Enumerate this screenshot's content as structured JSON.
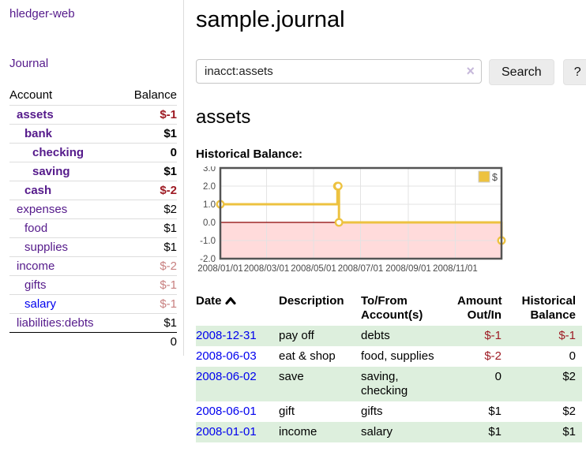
{
  "app": {
    "brand": "hledger-web"
  },
  "sidebar": {
    "journal_link": "Journal",
    "accounts": {
      "header_account": "Account",
      "header_balance": "Balance",
      "rows": [
        {
          "name": "assets",
          "balance": "$-1",
          "depth": 1,
          "bold": true,
          "tone": "neg-strong"
        },
        {
          "name": "bank",
          "balance": "$1",
          "depth": 2,
          "bold": true,
          "tone": "pos"
        },
        {
          "name": "checking",
          "balance": "0",
          "depth": 3,
          "bold": true,
          "tone": "pos"
        },
        {
          "name": "saving",
          "balance": "$1",
          "depth": 3,
          "bold": true,
          "tone": "pos"
        },
        {
          "name": "cash",
          "balance": "$-2",
          "depth": 2,
          "bold": true,
          "tone": "neg-strong"
        },
        {
          "name": "expenses",
          "balance": "$2",
          "depth": 1,
          "bold": false,
          "tone": "pos"
        },
        {
          "name": "food",
          "balance": "$1",
          "depth": 2,
          "bold": false,
          "tone": "pos"
        },
        {
          "name": "supplies",
          "balance": "$1",
          "depth": 2,
          "bold": false,
          "tone": "pos"
        },
        {
          "name": "income",
          "balance": "$-2",
          "depth": 1,
          "bold": false,
          "tone": "neg-soft"
        },
        {
          "name": "gifts",
          "balance": "$-1",
          "depth": 2,
          "bold": false,
          "tone": "neg-soft"
        },
        {
          "name": "salary",
          "balance": "$-1",
          "depth": 2,
          "bold": false,
          "tone": "neg-soft",
          "unvisited": true
        },
        {
          "name": "liabilities:debts",
          "balance": "$1",
          "depth": 1,
          "bold": false,
          "tone": "pos"
        }
      ],
      "total": "0"
    }
  },
  "main": {
    "title": "sample.journal",
    "search": {
      "value": "inacct:assets",
      "clear_icon": "×",
      "search_button": "Search",
      "help_button": "?"
    },
    "account_heading": "assets",
    "chart_label": "Historical Balance:"
  },
  "chart_data": {
    "type": "line",
    "step": true,
    "title": "Historical Balance",
    "series": [
      {
        "name": "$",
        "color": "#edc240",
        "points": [
          [
            "2008-01-01",
            1.0
          ],
          [
            "2008-06-01",
            2.0
          ],
          [
            "2008-06-02",
            2.0
          ],
          [
            "2008-06-03",
            0.0
          ],
          [
            "2008-12-31",
            -1.0
          ]
        ]
      }
    ],
    "x_range": [
      "2008-01-01",
      "2008-12-31"
    ],
    "ylim": [
      -2,
      3
    ],
    "y_ticks": [
      "3.0",
      "2.0",
      "1.0",
      "0.0",
      "-1.0",
      "-2.0"
    ],
    "x_ticks": [
      "2008/01/01",
      "2008/03/01",
      "2008/05/01",
      "2008/07/01",
      "2008/09/01",
      "2008/11/01"
    ],
    "grid": true,
    "legend": {
      "label": "$",
      "position": "ne"
    },
    "negative_fill": "rgba(255,0,0,0.14)",
    "zero_line_color": "#8b0000",
    "border_color": "#545454",
    "grid_color": "#e3e3e3",
    "tick_text_color": "#4a4a4a"
  },
  "register": {
    "headers": {
      "date": "Date",
      "description": "Description",
      "accounts": "To/From Account(s)",
      "amount": "Amount Out/In",
      "balance": "Historical Balance"
    },
    "rows": [
      {
        "date": "2008-12-31",
        "description": "pay off",
        "accounts": "debts",
        "amount": "$-1",
        "amount_neg": true,
        "balance": "$-1",
        "balance_neg": true
      },
      {
        "date": "2008-06-03",
        "description": "eat & shop",
        "accounts": "food, supplies",
        "amount": "$-2",
        "amount_neg": true,
        "balance": "0",
        "balance_neg": false
      },
      {
        "date": "2008-06-02",
        "description": "save",
        "accounts": "saving, checking",
        "amount": "0",
        "amount_neg": false,
        "balance": "$2",
        "balance_neg": false
      },
      {
        "date": "2008-06-01",
        "description": "gift",
        "accounts": "gifts",
        "amount": "$1",
        "amount_neg": false,
        "balance": "$2",
        "balance_neg": false
      },
      {
        "date": "2008-01-01",
        "description": "income",
        "accounts": "salary",
        "amount": "$1",
        "amount_neg": false,
        "balance": "$1",
        "balance_neg": false
      }
    ]
  }
}
